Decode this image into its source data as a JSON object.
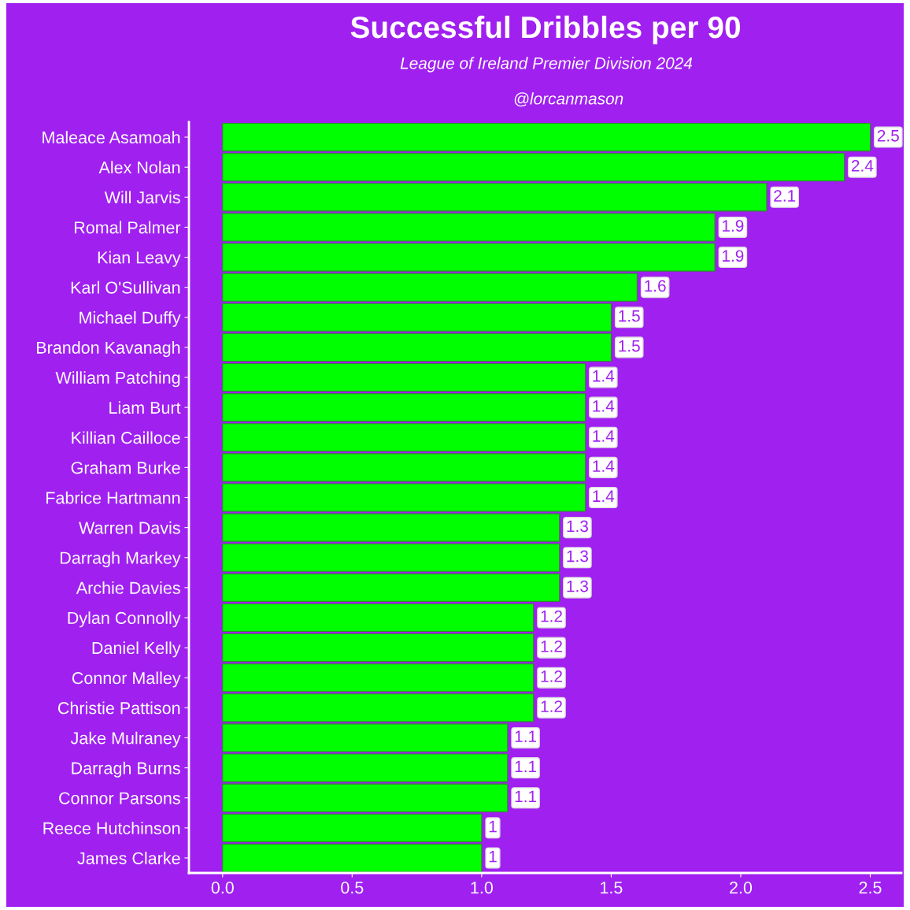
{
  "chart_data": {
    "type": "bar",
    "orientation": "horizontal",
    "title": "Successful Dribbles per 90",
    "subtitle": "League of Ireland Premier Division 2024",
    "annotations": [
      "@lorcanmason"
    ],
    "categories": [
      "Maleace Asamoah",
      "Alex Nolan",
      "Will Jarvis",
      "Romal Palmer",
      "Kian Leavy",
      "Karl O'Sullivan",
      "Michael Duffy",
      "Brandon Kavanagh",
      "William Patching",
      "Liam Burt",
      "Killian Cailloce",
      "Graham Burke",
      "Fabrice Hartmann",
      "Warren Davis",
      "Darragh Markey",
      "Archie Davies",
      "Dylan Connolly",
      "Daniel Kelly",
      "Connor Malley",
      "Christie Pattison",
      "Jake Mulraney",
      "Darragh Burns",
      "Connor Parsons",
      "Reece Hutchinson",
      "James Clarke"
    ],
    "values": [
      2.5,
      2.4,
      2.1,
      1.9,
      1.9,
      1.6,
      1.5,
      1.5,
      1.4,
      1.4,
      1.4,
      1.4,
      1.4,
      1.3,
      1.3,
      1.3,
      1.2,
      1.2,
      1.2,
      1.2,
      1.1,
      1.1,
      1.1,
      1,
      1
    ],
    "color": "#00ff00",
    "data_labels": true,
    "xlim": [
      -0.13,
      2.62
    ],
    "xticks": [
      {
        "value": 0,
        "label": "0.0"
      },
      {
        "value": 0.5,
        "label": "0.5"
      },
      {
        "value": 1,
        "label": "1.0"
      },
      {
        "value": 1.5,
        "label": "1.5"
      },
      {
        "value": 2,
        "label": "2.0"
      },
      {
        "value": 2.5,
        "label": "2.5"
      }
    ],
    "grid": false,
    "legend": false
  }
}
